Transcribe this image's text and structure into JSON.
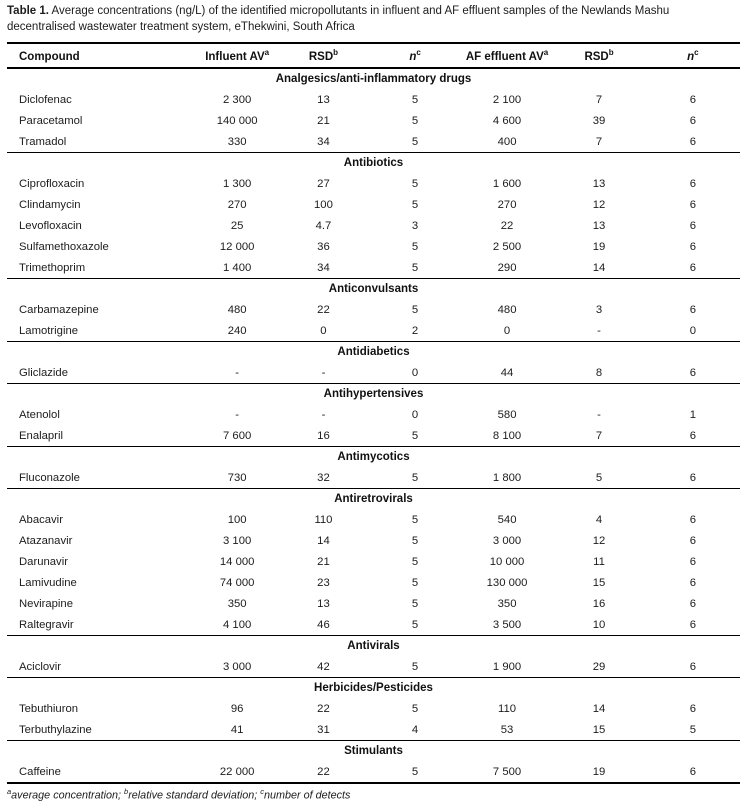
{
  "caption": {
    "label": "Table 1.",
    "text": " Average concentrations (ng/L) of the identified micropollutants in influent and AF effluent samples of the Newlands Mashu decentralised wastewater treatment system, eThekwini, South Africa"
  },
  "columns": [
    {
      "label": "Compound",
      "sup": ""
    },
    {
      "label": "Influent AV",
      "sup": "a"
    },
    {
      "label": "RSD",
      "sup": "b"
    },
    {
      "label": "n",
      "sup": "c"
    },
    {
      "label": "AF effluent AV",
      "sup": "a"
    },
    {
      "label": "RSD",
      "sup": "b"
    },
    {
      "label": "n",
      "sup": "c"
    }
  ],
  "sections": [
    {
      "name": "Analgesics/anti-inflammatory drugs",
      "rows": [
        [
          "Diclofenac",
          "2 300",
          "13",
          "5",
          "2 100",
          "7",
          "6"
        ],
        [
          "Paracetamol",
          "140 000",
          "21",
          "5",
          "4 600",
          "39",
          "6"
        ],
        [
          "Tramadol",
          "330",
          "34",
          "5",
          "400",
          "7",
          "6"
        ]
      ]
    },
    {
      "name": "Antibiotics",
      "rows": [
        [
          "Ciprofloxacin",
          "1 300",
          "27",
          "5",
          "1 600",
          "13",
          "6"
        ],
        [
          "Clindamycin",
          "270",
          "100",
          "5",
          "270",
          "12",
          "6"
        ],
        [
          "Levofloxacin",
          "25",
          "4.7",
          "3",
          "22",
          "13",
          "6"
        ],
        [
          "Sulfamethoxazole",
          "12 000",
          "36",
          "5",
          "2 500",
          "19",
          "6"
        ],
        [
          "Trimethoprim",
          "1 400",
          "34",
          "5",
          "290",
          "14",
          "6"
        ]
      ]
    },
    {
      "name": "Anticonvulsants",
      "rows": [
        [
          "Carbamazepine",
          "480",
          "22",
          "5",
          "480",
          "3",
          "6"
        ],
        [
          "Lamotrigine",
          "240",
          "0",
          "2",
          "0",
          "-",
          "0"
        ]
      ]
    },
    {
      "name": "Antidiabetics",
      "rows": [
        [
          "Gliclazide",
          "-",
          "-",
          "0",
          "44",
          "8",
          "6"
        ]
      ]
    },
    {
      "name": "Antihypertensives",
      "rows": [
        [
          "Atenolol",
          "-",
          "-",
          "0",
          "580",
          "-",
          "1"
        ],
        [
          "Enalapril",
          "7 600",
          "16",
          "5",
          "8 100",
          "7",
          "6"
        ]
      ]
    },
    {
      "name": "Antimycotics",
      "rows": [
        [
          "Fluconazole",
          "730",
          "32",
          "5",
          "1 800",
          "5",
          "6"
        ]
      ]
    },
    {
      "name": "Antiretrovirals",
      "rows": [
        [
          "Abacavir",
          "100",
          "110",
          "5",
          "540",
          "4",
          "6"
        ],
        [
          "Atazanavir",
          "3 100",
          "14",
          "5",
          "3 000",
          "12",
          "6"
        ],
        [
          "Darunavir",
          "14 000",
          "21",
          "5",
          "10 000",
          "11",
          "6"
        ],
        [
          "Lamivudine",
          "74 000",
          "23",
          "5",
          "130 000",
          "15",
          "6"
        ],
        [
          "Nevirapine",
          "350",
          "13",
          "5",
          "350",
          "16",
          "6"
        ],
        [
          "Raltegravir",
          "4 100",
          "46",
          "5",
          "3 500",
          "10",
          "6"
        ]
      ]
    },
    {
      "name": "Antivirals",
      "rows": [
        [
          "Aciclovir",
          "3 000",
          "42",
          "5",
          "1 900",
          "29",
          "6"
        ]
      ]
    },
    {
      "name": "Herbicides/Pesticides",
      "rows": [
        [
          "Tebuthiuron",
          "96",
          "22",
          "5",
          "110",
          "14",
          "6"
        ],
        [
          "Terbuthylazine",
          "41",
          "31",
          "4",
          "53",
          "15",
          "5"
        ]
      ]
    },
    {
      "name": "Stimulants",
      "rows": [
        [
          "Caffeine",
          "22 000",
          "22",
          "5",
          "7 500",
          "19",
          "6"
        ]
      ]
    }
  ],
  "footnotes": [
    {
      "sup": "a",
      "text": "average concentration; "
    },
    {
      "sup": "b",
      "text": "relative standard deviation; "
    },
    {
      "sup": "c",
      "text": "number of detects"
    }
  ]
}
